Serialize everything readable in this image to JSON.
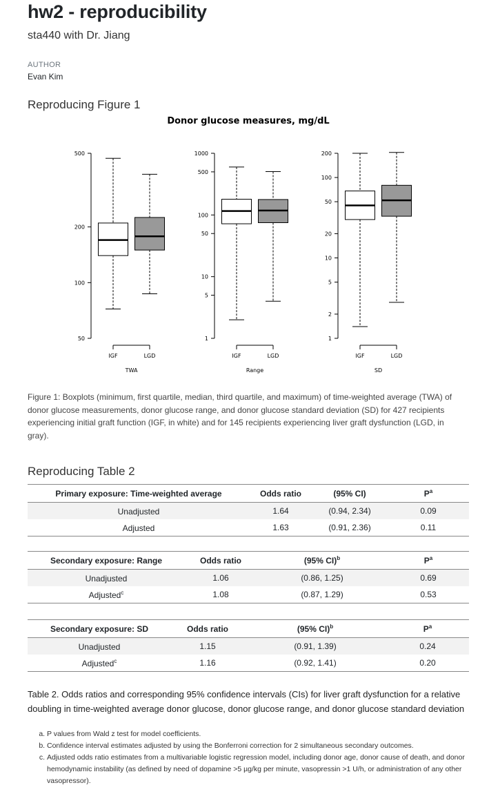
{
  "header": {
    "title": "hw2 - reproducibility",
    "subtitle": "sta440 with Dr. Jiang",
    "author_label": "AUTHOR",
    "author_name": "Evan Kim"
  },
  "section1": {
    "heading": "Reproducing Figure 1"
  },
  "chart_data": {
    "type": "boxplot",
    "title": "Donor glucose measures, mg/dL",
    "scale": "log",
    "groups": [
      "IGF",
      "LGD"
    ],
    "colors": {
      "IGF": "#ffffff",
      "LGD": "#999999"
    },
    "panels": [
      {
        "xlabel": "TWA",
        "yticks": [
          50,
          100,
          200,
          500
        ],
        "ylim": [
          50,
          500
        ],
        "boxes": [
          {
            "group": "IGF",
            "min": 72,
            "q1": 140,
            "median": 170,
            "q3": 210,
            "max": 470
          },
          {
            "group": "LGD",
            "min": 87,
            "q1": 150,
            "median": 178,
            "q3": 225,
            "max": 385
          }
        ]
      },
      {
        "xlabel": "Range",
        "yticks": [
          1,
          5,
          10,
          50,
          100,
          500,
          1000
        ],
        "ylim": [
          1,
          1000
        ],
        "boxes": [
          {
            "group": "IGF",
            "min": 2,
            "q1": 72,
            "median": 116,
            "q3": 180,
            "max": 600
          },
          {
            "group": "LGD",
            "min": 4,
            "q1": 75,
            "median": 118,
            "q3": 178,
            "max": 505
          }
        ]
      },
      {
        "xlabel": "SD",
        "yticks": [
          1,
          2,
          5,
          10,
          20,
          50,
          100,
          200
        ],
        "ylim": [
          1,
          200
        ],
        "boxes": [
          {
            "group": "IGF",
            "min": 1.4,
            "q1": 30,
            "median": 45,
            "q3": 68,
            "max": 200
          },
          {
            "group": "LGD",
            "min": 2.8,
            "q1": 33,
            "median": 52,
            "q3": 80,
            "max": 205
          }
        ]
      }
    ]
  },
  "figure_caption": "Figure 1: Boxplots (minimum, first quartile, median, third quartile, and maximum) of time-weighted average (TWA) of donor glucose measurements, donor glucose range, and donor glucose standard deviation (SD) for 427 recipients experiencing initial graft function (IGF, in white) and for 145 recipients experiencing liver graft dysfunction (LGD, in gray).",
  "section2": {
    "heading": "Reproducing Table 2"
  },
  "tables": [
    {
      "headers": [
        "Primary exposure: Time-weighted average",
        "Odds ratio",
        "(95% CI)",
        "P"
      ],
      "p_sup": "a",
      "ci_sup": "",
      "rows": [
        {
          "label": "Unadjusted",
          "label_sup": "",
          "or": "1.64",
          "ci": "(0.94, 2.34)",
          "p": "0.09"
        },
        {
          "label": "Adjusted",
          "label_sup": "",
          "or": "1.63",
          "ci": "(0.91, 2.36)",
          "p": "0.11"
        }
      ]
    },
    {
      "headers": [
        "Secondary exposure: Range",
        "Odds ratio",
        "(95% CI)",
        "P"
      ],
      "p_sup": "a",
      "ci_sup": "b",
      "rows": [
        {
          "label": "Unadjusted",
          "label_sup": "",
          "or": "1.06",
          "ci": "(0.86, 1.25)",
          "p": "0.69"
        },
        {
          "label": "Adjusted",
          "label_sup": "c",
          "or": "1.08",
          "ci": "(0.87, 1.29)",
          "p": "0.53"
        }
      ]
    },
    {
      "headers": [
        "Secondary exposure: SD",
        "Odds ratio",
        "(95% CI)",
        "P"
      ],
      "p_sup": "a",
      "ci_sup": "b",
      "rows": [
        {
          "label": "Unadjusted",
          "label_sup": "",
          "or": "1.15",
          "ci": "(0.91, 1.39)",
          "p": "0.24"
        },
        {
          "label": "Adjusted",
          "label_sup": "c",
          "or": "1.16",
          "ci": "(0.92, 1.41)",
          "p": "0.20"
        }
      ]
    }
  ],
  "table_caption": "Table 2. Odds ratios and corresponding 95% confidence intervals (CIs) for liver graft dysfunction for a relative doubling in time-weighted average donor glucose, donor glucose range, and donor glucose standard deviation",
  "notes": [
    "P values from Wald z test for model coefficients.",
    "Confidence interval estimates adjusted by using the Bonferroni correction for 2 simultaneous secondary outcomes.",
    "Adjusted odds ratio estimates from a multivariable logistic regression model, including donor age, donor cause of death, and donor hemodynamic instability (as defined by need of dopamine >5 µg/kg per minute, vasopressin >1 U/h, or administration of any other vasopressor)."
  ]
}
